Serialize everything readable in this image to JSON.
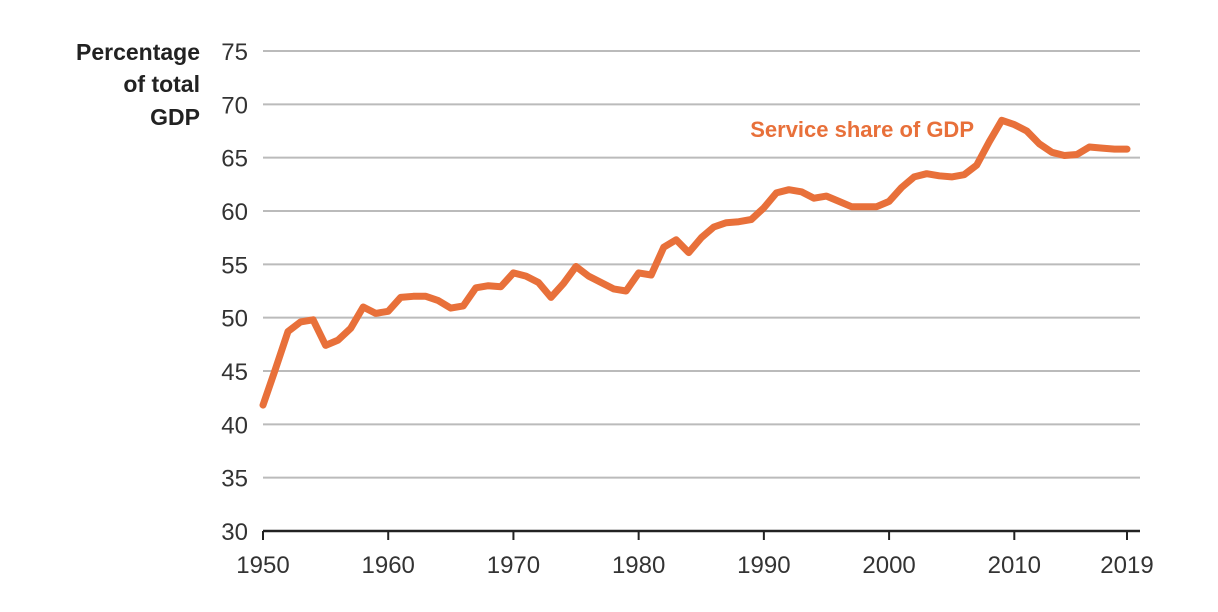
{
  "chart_data": {
    "type": "line",
    "title": "",
    "xlabel": "",
    "ylabel": [
      "Percentage",
      "of total",
      "GDP"
    ],
    "xlim": [
      1950,
      2019
    ],
    "ylim": [
      30,
      75
    ],
    "x_ticks": [
      1950,
      1960,
      1970,
      1980,
      1990,
      2000,
      2010,
      2019
    ],
    "y_ticks": [
      30,
      35,
      40,
      45,
      50,
      55,
      60,
      65,
      70,
      75
    ],
    "grid": "horizontal",
    "colors": {
      "line": "#E8703A",
      "grid": "#BBBBBB",
      "axis": "#222222"
    },
    "series": [
      {
        "name": "Service share of GDP",
        "x": [
          1950,
          1951,
          1952,
          1953,
          1954,
          1955,
          1956,
          1957,
          1958,
          1959,
          1960,
          1961,
          1962,
          1963,
          1964,
          1965,
          1966,
          1967,
          1968,
          1969,
          1970,
          1971,
          1972,
          1973,
          1974,
          1975,
          1976,
          1977,
          1978,
          1979,
          1980,
          1981,
          1982,
          1983,
          1984,
          1985,
          1986,
          1987,
          1988,
          1989,
          1990,
          1991,
          1992,
          1993,
          1994,
          1995,
          1996,
          1997,
          1998,
          1999,
          2000,
          2001,
          2002,
          2003,
          2004,
          2005,
          2006,
          2007,
          2008,
          2009,
          2010,
          2011,
          2012,
          2013,
          2014,
          2015,
          2016,
          2017,
          2018,
          2019
        ],
        "values": [
          41.8,
          45.2,
          48.7,
          49.6,
          49.8,
          47.4,
          47.9,
          49.0,
          51.0,
          50.4,
          50.6,
          51.9,
          52.0,
          52.0,
          51.6,
          50.9,
          51.1,
          52.8,
          53.0,
          52.9,
          54.2,
          53.9,
          53.3,
          51.9,
          53.2,
          54.8,
          53.9,
          53.3,
          52.7,
          52.5,
          54.2,
          54.0,
          56.6,
          57.3,
          56.1,
          57.5,
          58.5,
          58.9,
          59.0,
          59.2,
          60.3,
          61.7,
          62.0,
          61.8,
          61.2,
          61.4,
          60.9,
          60.4,
          60.4,
          60.4,
          60.9,
          62.2,
          63.2,
          63.5,
          63.3,
          63.2,
          63.4,
          64.3,
          66.5,
          68.5,
          68.1,
          67.5,
          66.3,
          65.5,
          65.2,
          65.3,
          66.0,
          65.9,
          65.8,
          65.8
        ]
      }
    ]
  }
}
